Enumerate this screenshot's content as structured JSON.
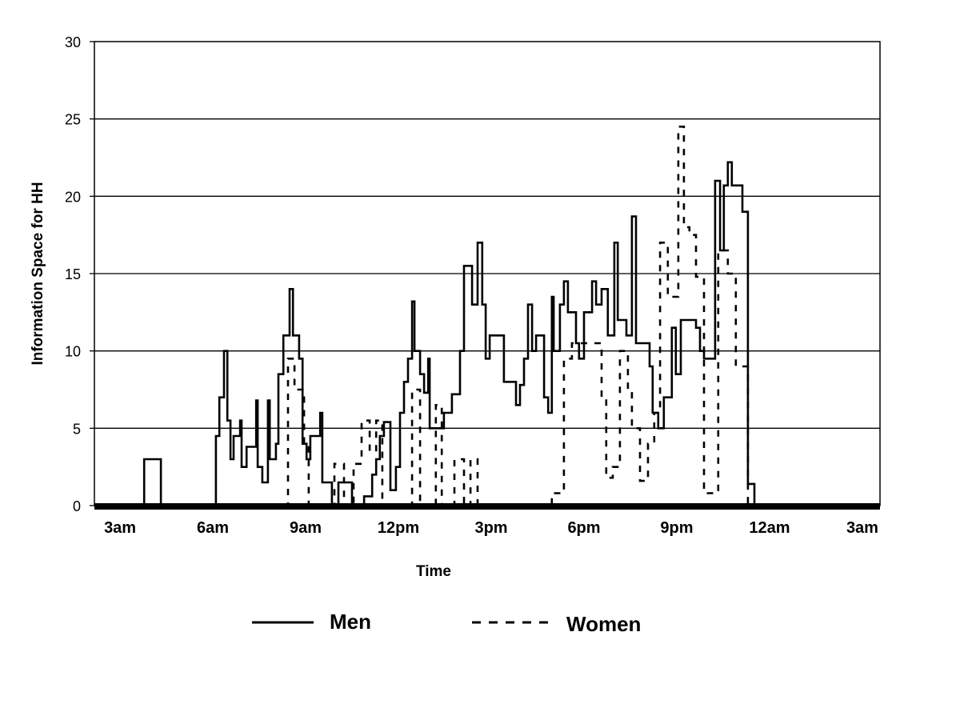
{
  "chart_data": {
    "type": "line",
    "title": "",
    "xlabel": "Time",
    "ylabel": "Information Space for HH",
    "xlim": [
      2.17,
      27.57
    ],
    "ylim": [
      0,
      30
    ],
    "x_unit": "hours since midnight (27 = 3am next day)",
    "yticks": [
      0,
      5,
      10,
      15,
      20,
      25,
      30
    ],
    "xticks": [
      {
        "value": 3,
        "label": "3am"
      },
      {
        "value": 6,
        "label": "6am"
      },
      {
        "value": 9,
        "label": "9am"
      },
      {
        "value": 12,
        "label": "12pm"
      },
      {
        "value": 15,
        "label": "3pm"
      },
      {
        "value": 18,
        "label": "6pm"
      },
      {
        "value": 21,
        "label": "9pm"
      },
      {
        "value": 24,
        "label": "12am"
      },
      {
        "value": 27,
        "label": "3am"
      }
    ],
    "grid": "horizontal",
    "legend_position": "bottom",
    "series": [
      {
        "name": "Men",
        "style": "solid",
        "color": "#000000",
        "step": true,
        "points": [
          [
            2.17,
            0
          ],
          [
            3.78,
            3
          ],
          [
            4.32,
            0
          ],
          [
            6.1,
            4.5
          ],
          [
            6.21,
            7
          ],
          [
            6.36,
            10
          ],
          [
            6.47,
            5.5
          ],
          [
            6.57,
            3
          ],
          [
            6.67,
            4.5
          ],
          [
            6.88,
            5.5
          ],
          [
            6.93,
            2.5
          ],
          [
            7.09,
            3.8
          ],
          [
            7.4,
            6.8
          ],
          [
            7.45,
            2.5
          ],
          [
            7.6,
            1.5
          ],
          [
            7.78,
            6.8
          ],
          [
            7.84,
            3
          ],
          [
            8.04,
            4
          ],
          [
            8.12,
            8.5
          ],
          [
            8.28,
            11
          ],
          [
            8.48,
            14
          ],
          [
            8.59,
            11
          ],
          [
            8.79,
            9.5
          ],
          [
            8.9,
            4
          ],
          [
            9.03,
            3
          ],
          [
            9.15,
            4.5
          ],
          [
            9.47,
            6
          ],
          [
            9.54,
            1.5
          ],
          [
            9.85,
            0
          ],
          [
            10.06,
            1.5
          ],
          [
            10.5,
            0
          ],
          [
            10.89,
            0.6
          ],
          [
            11.15,
            2
          ],
          [
            11.28,
            3
          ],
          [
            11.4,
            4.5
          ],
          [
            11.53,
            5.4
          ],
          [
            11.74,
            1
          ],
          [
            11.92,
            2.5
          ],
          [
            12.05,
            6
          ],
          [
            12.18,
            8
          ],
          [
            12.31,
            9.5
          ],
          [
            12.44,
            13.2
          ],
          [
            12.52,
            10
          ],
          [
            12.7,
            8.5
          ],
          [
            12.83,
            7.3
          ],
          [
            12.96,
            9.5
          ],
          [
            13.01,
            5
          ],
          [
            13.47,
            6
          ],
          [
            13.73,
            7.2
          ],
          [
            13.99,
            10
          ],
          [
            14.12,
            15.5
          ],
          [
            14.38,
            13
          ],
          [
            14.56,
            17
          ],
          [
            14.71,
            13
          ],
          [
            14.82,
            9.5
          ],
          [
            14.95,
            11
          ],
          [
            15.41,
            8
          ],
          [
            15.8,
            6.5
          ],
          [
            15.93,
            7.8
          ],
          [
            16.06,
            9.5
          ],
          [
            16.19,
            13
          ],
          [
            16.32,
            10
          ],
          [
            16.45,
            11
          ],
          [
            16.71,
            7
          ],
          [
            16.84,
            6
          ],
          [
            16.96,
            13.5
          ],
          [
            17.02,
            10
          ],
          [
            17.22,
            13
          ],
          [
            17.35,
            14.5
          ],
          [
            17.48,
            12.5
          ],
          [
            17.74,
            10.5
          ],
          [
            17.84,
            9.5
          ],
          [
            18.0,
            12.5
          ],
          [
            18.26,
            14.5
          ],
          [
            18.39,
            13
          ],
          [
            18.57,
            14
          ],
          [
            18.77,
            11
          ],
          [
            18.98,
            17
          ],
          [
            19.09,
            12
          ],
          [
            19.37,
            11
          ],
          [
            19.55,
            18.7
          ],
          [
            19.68,
            10.5
          ],
          [
            20.12,
            9
          ],
          [
            20.22,
            6
          ],
          [
            20.4,
            5
          ],
          [
            20.58,
            7
          ],
          [
            20.84,
            11.5
          ],
          [
            20.97,
            8.5
          ],
          [
            21.13,
            12
          ],
          [
            21.62,
            11.5
          ],
          [
            21.75,
            10
          ],
          [
            21.88,
            9.5
          ],
          [
            22.24,
            21
          ],
          [
            22.4,
            16.5
          ],
          [
            22.52,
            20.7
          ],
          [
            22.65,
            22.2
          ],
          [
            22.78,
            20.7
          ],
          [
            23.12,
            19
          ],
          [
            23.3,
            1.4
          ],
          [
            23.51,
            0
          ],
          [
            27.57,
            0
          ]
        ]
      },
      {
        "name": "Women",
        "style": "dashed",
        "color": "#000000",
        "step": true,
        "points": [
          [
            2.17,
            0
          ],
          [
            8.3,
            0
          ],
          [
            8.43,
            9.5
          ],
          [
            8.64,
            7.5
          ],
          [
            8.95,
            4
          ],
          [
            9.1,
            0
          ],
          [
            9.93,
            2.7
          ],
          [
            10.24,
            0
          ],
          [
            10.55,
            2.7
          ],
          [
            10.81,
            5.5
          ],
          [
            11.07,
            3.5
          ],
          [
            11.28,
            5.5
          ],
          [
            11.48,
            0
          ],
          [
            12.44,
            7.5
          ],
          [
            12.7,
            0
          ],
          [
            13.21,
            6.5
          ],
          [
            13.4,
            0
          ],
          [
            13.81,
            3
          ],
          [
            14.12,
            0
          ],
          [
            14.33,
            3
          ],
          [
            14.56,
            0
          ],
          [
            16.96,
            0.8
          ],
          [
            17.35,
            9.5
          ],
          [
            17.61,
            10.5
          ],
          [
            18.39,
            10.5
          ],
          [
            18.57,
            7
          ],
          [
            18.72,
            1.8
          ],
          [
            18.93,
            2.5
          ],
          [
            19.16,
            10
          ],
          [
            19.42,
            7.5
          ],
          [
            19.55,
            5
          ],
          [
            19.81,
            1.6
          ],
          [
            20.07,
            4
          ],
          [
            20.27,
            6
          ],
          [
            20.46,
            17
          ],
          [
            20.71,
            13.5
          ],
          [
            21.05,
            24.5
          ],
          [
            21.23,
            18
          ],
          [
            21.41,
            17.5
          ],
          [
            21.62,
            14.8
          ],
          [
            21.88,
            0.8
          ],
          [
            22.14,
            1
          ],
          [
            22.34,
            16.5
          ],
          [
            22.65,
            15
          ],
          [
            22.91,
            9
          ],
          [
            23.3,
            0
          ],
          [
            27.57,
            0
          ]
        ]
      }
    ]
  },
  "legend": {
    "men_label": "Men",
    "women_label": "Women"
  }
}
